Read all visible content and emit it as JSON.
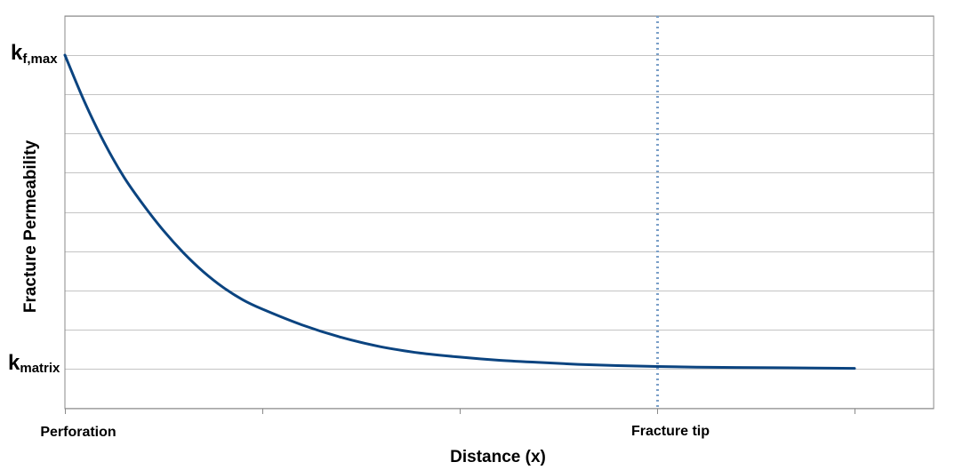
{
  "chart_data": {
    "type": "line",
    "title": "",
    "xlabel": "Distance (x)",
    "ylabel": "Fracture Permeability",
    "x_tick_labels": [
      {
        "x": 0,
        "label": "Perforation"
      },
      {
        "x": 3,
        "label": "Fracture tip"
      }
    ],
    "y_tick_labels": {
      "top": {
        "base": "k",
        "sub": "f,max",
        "y": 1
      },
      "bottom": {
        "base": "k",
        "sub": "matrix",
        "y": 0
      }
    },
    "xlim": [
      0,
      4.4
    ],
    "ylim": [
      -0.125,
      1.125
    ],
    "x_ticks": [
      0,
      1,
      2,
      3,
      4
    ],
    "y_gridlines": [
      -0.125,
      0,
      0.125,
      0.25,
      0.375,
      0.5,
      0.625,
      0.75,
      0.875,
      1,
      1.125
    ],
    "grid": true,
    "reference_lines": [
      {
        "x": 3,
        "style": "dotted",
        "color": "#7a9fc8"
      }
    ],
    "series": [
      {
        "color": "#0b4480",
        "x": [
          0,
          0.1,
          0.2,
          0.3,
          0.4,
          0.5,
          0.6,
          0.7,
          0.8,
          0.9,
          1.0,
          1.2,
          1.4,
          1.6,
          1.8,
          2.0,
          2.2,
          2.4,
          2.6,
          2.8,
          3.0,
          3.2,
          3.4,
          3.6,
          3.8,
          4.0
        ],
        "y": [
          1.0,
          0.85,
          0.72,
          0.61,
          0.52,
          0.44,
          0.37,
          0.31,
          0.26,
          0.22,
          0.19,
          0.14,
          0.1,
          0.07,
          0.05,
          0.037,
          0.027,
          0.02,
          0.014,
          0.01,
          0.007,
          0.005,
          0.004,
          0.003,
          0.002,
          0.001
        ]
      }
    ]
  }
}
